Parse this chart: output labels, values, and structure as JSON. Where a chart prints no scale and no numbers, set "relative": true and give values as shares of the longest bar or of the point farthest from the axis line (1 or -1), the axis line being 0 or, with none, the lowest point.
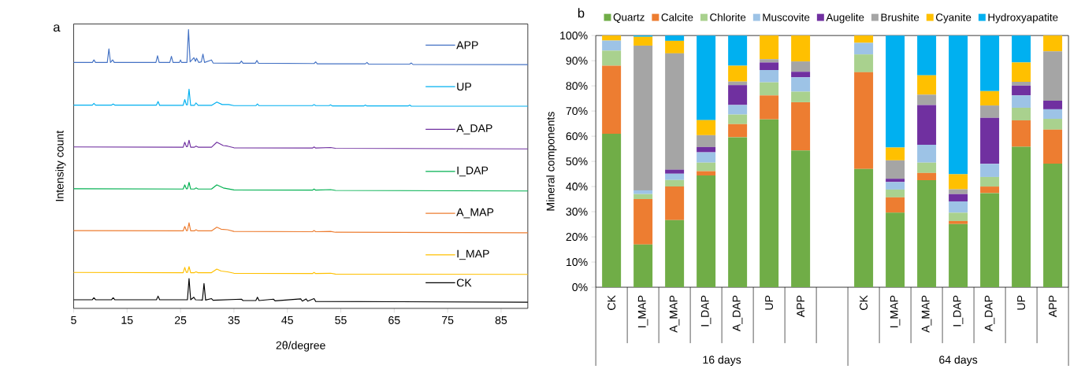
{
  "chart_data": [
    {
      "type": "line",
      "title": "a",
      "xlabel": "2θ/degree",
      "ylabel": "Intensity count",
      "relative": true,
      "xlim": [
        5,
        90
      ],
      "xticks": [
        5,
        15,
        25,
        35,
        45,
        55,
        65,
        75,
        85
      ],
      "tick_labels": "x",
      "legend": "right",
      "series": [
        {
          "name": "APP",
          "color": "#4472c4",
          "x": [
            5,
            8.5,
            8.8,
            9.1,
            11.3,
            11.6,
            11.9,
            12.3,
            12.6,
            20.4,
            20.7,
            21.0,
            23.0,
            23.3,
            23.6,
            24.8,
            25.0,
            25.2,
            26.2,
            26.5,
            26.8,
            27.5,
            27.8,
            28.0,
            28.4,
            28.9,
            29.2,
            29.5,
            30.8,
            31.1,
            36.1,
            36.4,
            36.7,
            39.0,
            39.3,
            39.6,
            50.0,
            50.3,
            50.6,
            59.6,
            59.9,
            60.2,
            67.9,
            68.2,
            68.5,
            90
          ],
          "values": [
            0.882,
            0.882,
            0.891,
            0.882,
            0.882,
            0.931,
            0.882,
            0.891,
            0.882,
            0.882,
            0.906,
            0.882,
            0.882,
            0.904,
            0.882,
            0.882,
            0.891,
            0.882,
            0.882,
            1.0,
            0.884,
            0.899,
            0.886,
            0.897,
            0.882,
            0.884,
            0.912,
            0.882,
            0.891,
            0.88,
            0.879,
            0.887,
            0.879,
            0.879,
            0.889,
            0.879,
            0.878,
            0.884,
            0.877,
            0.877,
            0.882,
            0.876,
            0.876,
            0.88,
            0.875,
            0.874
          ]
        },
        {
          "name": "UP",
          "color": "#00b0f0",
          "x": [
            5,
            8.5,
            8.8,
            9.1,
            12.1,
            12.4,
            12.7,
            20.5,
            20.8,
            21.1,
            25.5,
            25.8,
            26.1,
            26.3,
            26.6,
            26.9,
            27.6,
            27.9,
            28.3,
            30.8,
            31.8,
            32.8,
            34.0,
            35,
            39.1,
            39.4,
            39.7,
            49.7,
            50.0,
            50.3,
            52.8,
            53.1,
            53.4,
            59.3,
            59.6,
            59.9,
            67.6,
            67.9,
            68.2,
            90
          ],
          "values": [
            0.729,
            0.729,
            0.735,
            0.729,
            0.729,
            0.733,
            0.729,
            0.729,
            0.742,
            0.728,
            0.728,
            0.749,
            0.73,
            0.73,
            0.786,
            0.728,
            0.728,
            0.737,
            0.728,
            0.728,
            0.74,
            0.731,
            0.731,
            0.727,
            0.727,
            0.733,
            0.727,
            0.727,
            0.731,
            0.727,
            0.727,
            0.73,
            0.726,
            0.726,
            0.729,
            0.726,
            0.726,
            0.729,
            0.725,
            0.725
          ]
        },
        {
          "name": "A_DAP",
          "color": "#7030a0",
          "x": [
            5,
            25.5,
            25.8,
            26.1,
            26.3,
            26.6,
            26.9,
            27.6,
            27.9,
            28.3,
            30.8,
            31.8,
            33.0,
            33.8,
            35.0,
            49.7,
            50.0,
            50.3,
            53.1,
            54,
            90
          ],
          "values": [
            0.579,
            0.578,
            0.596,
            0.58,
            0.58,
            0.603,
            0.578,
            0.578,
            0.582,
            0.578,
            0.578,
            0.596,
            0.584,
            0.582,
            0.576,
            0.575,
            0.579,
            0.575,
            0.577,
            0.574,
            0.572
          ]
        },
        {
          "name": "I_DAP",
          "color": "#00b050",
          "x": [
            5,
            25.5,
            25.8,
            26.1,
            26.3,
            26.6,
            26.9,
            27.6,
            27.9,
            28.3,
            30.8,
            31.8,
            33.0,
            35,
            49.7,
            50.0,
            50.3,
            53.1,
            54,
            90
          ],
          "values": [
            0.429,
            0.428,
            0.443,
            0.429,
            0.429,
            0.452,
            0.428,
            0.428,
            0.432,
            0.428,
            0.428,
            0.443,
            0.432,
            0.425,
            0.424,
            0.428,
            0.424,
            0.426,
            0.423,
            0.421
          ]
        },
        {
          "name": "A_MAP",
          "color": "#ed7d31",
          "x": [
            5,
            25.5,
            25.8,
            26.1,
            26.3,
            26.6,
            26.9,
            27.6,
            27.9,
            28.3,
            30.8,
            31.8,
            32.6,
            33.8,
            35,
            49.7,
            50.0,
            50.3,
            53.1,
            54,
            90
          ],
          "values": [
            0.279,
            0.278,
            0.294,
            0.279,
            0.279,
            0.307,
            0.278,
            0.278,
            0.282,
            0.278,
            0.278,
            0.291,
            0.284,
            0.282,
            0.276,
            0.275,
            0.279,
            0.275,
            0.276,
            0.273,
            0.271
          ]
        },
        {
          "name": "I_MAP",
          "color": "#ffc000",
          "x": [
            5,
            25.5,
            25.8,
            26.1,
            26.3,
            26.6,
            26.9,
            27.6,
            27.9,
            28.3,
            30.8,
            31.8,
            32.6,
            33.8,
            35,
            49.7,
            50.0,
            50.3,
            53.1,
            54,
            90
          ],
          "values": [
            0.129,
            0.128,
            0.147,
            0.129,
            0.129,
            0.15,
            0.128,
            0.128,
            0.131,
            0.128,
            0.128,
            0.141,
            0.134,
            0.131,
            0.126,
            0.125,
            0.129,
            0.125,
            0.126,
            0.123,
            0.122
          ]
        },
        {
          "name": "CK",
          "color": "#000000",
          "x": [
            5,
            8.5,
            8.8,
            9.1,
            12.1,
            12.4,
            12.7,
            20.5,
            20.8,
            21.1,
            26.3,
            26.6,
            26.9,
            27.5,
            27.8,
            29.1,
            29.4,
            29.7,
            30.8,
            31.1,
            36.4,
            36.7,
            39.1,
            39.4,
            39.7,
            42.4,
            42.7,
            47.5,
            47.8,
            48.5,
            48.8,
            50.0,
            50.3,
            90
          ],
          "values": [
            0.031,
            0.031,
            0.038,
            0.031,
            0.031,
            0.038,
            0.031,
            0.031,
            0.044,
            0.031,
            0.031,
            0.107,
            0.031,
            0.04,
            0.031,
            0.03,
            0.089,
            0.03,
            0.035,
            0.029,
            0.033,
            0.028,
            0.028,
            0.04,
            0.028,
            0.033,
            0.027,
            0.034,
            0.026,
            0.034,
            0.026,
            0.035,
            0.025,
            0.022
          ]
        }
      ]
    },
    {
      "type": "bar",
      "title": "b",
      "ylabel": "Mineral components",
      "stacked": true,
      "legend": "top",
      "categories": [
        "CK",
        "I_MAP",
        "A_MAP",
        "I_DAP",
        "A_DAP",
        "UP",
        "APP",
        null,
        "CK",
        "I_MAP",
        "A_MAP",
        "I_DAP",
        "A_DAP",
        "UP",
        "APP"
      ],
      "annotations": [
        "16 days",
        "64 days"
      ],
      "ylim": [
        0,
        100
      ],
      "yticks": [
        {
          "value": 0,
          "label": "0%"
        },
        {
          "value": 10,
          "label": "10%"
        },
        {
          "value": 20,
          "label": "20%"
        },
        {
          "value": 30,
          "label": "30%"
        },
        {
          "value": 40,
          "label": "40%"
        },
        {
          "value": 50,
          "label": "50%"
        },
        {
          "value": 60,
          "label": "60%"
        },
        {
          "value": 70,
          "label": "70%"
        },
        {
          "value": 80,
          "label": "80%"
        },
        {
          "value": 90,
          "label": "90%"
        },
        {
          "value": 100,
          "label": "100%"
        }
      ],
      "series": [
        {
          "name": "Quartz",
          "color": "#70ad47",
          "values": [
            61,
            17,
            26.7,
            44.4,
            59.6,
            66.7,
            54.3,
            null,
            47,
            29.6,
            42.5,
            25.1,
            37.4,
            55.8,
            49.1
          ]
        },
        {
          "name": "Calcite",
          "color": "#ed7d31",
          "values": [
            27,
            18,
            13.3,
            1.7,
            5.2,
            9.5,
            19.2,
            null,
            38.4,
            6.1,
            2.9,
            1.2,
            2.6,
            10.5,
            13.5
          ]
        },
        {
          "name": "Chlorite",
          "color": "#a9d18e",
          "values": [
            6,
            2,
            2.6,
            3.4,
            3.8,
            5.2,
            4.2,
            null,
            7.1,
            3.1,
            4.1,
            3.3,
            3.8,
            5,
            4.3
          ]
        },
        {
          "name": "Muscovite",
          "color": "#9dc3e6",
          "values": [
            4,
            1.5,
            2.5,
            4.1,
            3.8,
            4.9,
            5.7,
            null,
            4.6,
            3,
            7.1,
            4.5,
            5.2,
            4.9,
            3.8
          ]
        },
        {
          "name": "Augelite",
          "color": "#7030a0",
          "values": [
            0,
            0,
            1.6,
            2.1,
            7.9,
            3,
            2.2,
            null,
            0,
            1.3,
            15.8,
            2.9,
            18.3,
            3.9,
            3.4
          ]
        },
        {
          "name": "Brushite",
          "color": "#a5a5a5",
          "values": [
            0,
            57.5,
            46.2,
            4.7,
            1.4,
            1.3,
            4.1,
            null,
            0,
            7.3,
            4.1,
            1.9,
            4.9,
            1.5,
            19.6
          ]
        },
        {
          "name": "Cyanite",
          "color": "#ffc000",
          "values": [
            2,
            3.5,
            5,
            6,
            6.3,
            9.4,
            10.3,
            null,
            2.9,
            5.1,
            7.7,
            6,
            5.7,
            7.7,
            6.3
          ]
        },
        {
          "name": "Hydroxyapatite",
          "color": "#00b0f0",
          "values": [
            0,
            0.5,
            2.1,
            33.6,
            12,
            0,
            0,
            null,
            0,
            44.5,
            15.8,
            55.1,
            22.1,
            10.7,
            0
          ]
        }
      ]
    }
  ]
}
